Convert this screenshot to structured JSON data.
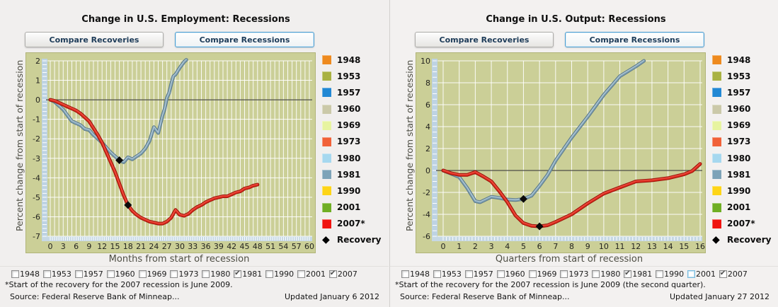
{
  "panels": [
    {
      "title": "Change in U.S. Employment: Recessions",
      "tabs": {
        "compare_recoveries": "Compare Recoveries",
        "compare_recessions": "Compare Recessions",
        "active": "compare_recessions"
      },
      "checkboxes": [
        {
          "label": "1948",
          "checked": false
        },
        {
          "label": "1953",
          "checked": false
        },
        {
          "label": "1957",
          "checked": false
        },
        {
          "label": "1960",
          "checked": false
        },
        {
          "label": "1969",
          "checked": false
        },
        {
          "label": "1973",
          "checked": false
        },
        {
          "label": "1980",
          "checked": false
        },
        {
          "label": "1981",
          "checked": true
        },
        {
          "label": "1990",
          "checked": false
        },
        {
          "label": "2001",
          "checked": false
        },
        {
          "label": "2007",
          "checked": true
        }
      ],
      "footnote": "*Start of the recovery for the 2007 recession is June 2009.",
      "source": "Source: Federal Reserve Bank of Minneap...",
      "updated": "Updated January 6 2012"
    },
    {
      "title": "Change in U.S. Output: Recessions",
      "tabs": {
        "compare_recoveries": "Compare Recoveries",
        "compare_recessions": "Compare Recessions",
        "active": "compare_recessions"
      },
      "checkboxes": [
        {
          "label": "1948",
          "checked": false
        },
        {
          "label": "1953",
          "checked": false
        },
        {
          "label": "1957",
          "checked": false
        },
        {
          "label": "1960",
          "checked": false
        },
        {
          "label": "1969",
          "checked": false
        },
        {
          "label": "1973",
          "checked": false
        },
        {
          "label": "1980",
          "checked": false
        },
        {
          "label": "1981",
          "checked": true
        },
        {
          "label": "1990",
          "checked": false
        },
        {
          "label": "2001",
          "checked": false,
          "focused": true
        },
        {
          "label": "2007",
          "checked": true
        }
      ],
      "footnote": "*Start of the recovery for the 2007 recession is June 2009 (the second quarter).",
      "source": "Source: Federal Reserve Bank of Minneap...",
      "updated": "Updated January 27 2012"
    }
  ],
  "legend": [
    {
      "label": "1948",
      "color": "#ee8a1e"
    },
    {
      "label": "1953",
      "color": "#a9b242"
    },
    {
      "label": "1957",
      "color": "#2288d4"
    },
    {
      "label": "1960",
      "color": "#cbc9a9"
    },
    {
      "label": "1969",
      "color": "#e7f4a0"
    },
    {
      "label": "1973",
      "color": "#f16138"
    },
    {
      "label": "1980",
      "color": "#a6d8ef"
    },
    {
      "label": "1981",
      "color": "#7da3b8"
    },
    {
      "label": "1990",
      "color": "#fed517"
    },
    {
      "label": "2001",
      "color": "#6fae24"
    },
    {
      "label": "2007*",
      "color": "#f01410"
    },
    {
      "label": "Recovery",
      "glyph": "◆",
      "icon": "recovery-diamond"
    }
  ],
  "chart_data": [
    {
      "type": "line",
      "title": "Change in U.S. Employment: Recessions",
      "xlabel": "Months from start of recession",
      "ylabel": "Percent change from start of recession",
      "xlim": [
        0,
        60
      ],
      "ylim": [
        -7,
        2
      ],
      "xtick_step": 3,
      "ytick_step": 1,
      "grid": {
        "x": 1,
        "y": 1
      },
      "minor": {
        "x": 0.5,
        "y": 0.2
      },
      "legend_position": "right",
      "background": "#cbcf97",
      "series": [
        {
          "name": "1981",
          "color": "#7fa1b5",
          "edge": "#5c7a8b",
          "highlight": "#c0d3dc",
          "points": [
            [
              0,
              0
            ],
            [
              1,
              -0.1
            ],
            [
              2,
              -0.3
            ],
            [
              3,
              -0.5
            ],
            [
              4,
              -0.8
            ],
            [
              5,
              -1.1
            ],
            [
              6,
              -1.2
            ],
            [
              7,
              -1.3
            ],
            [
              8,
              -1.5
            ],
            [
              9,
              -1.55
            ],
            [
              10,
              -1.8
            ],
            [
              11,
              -2.0
            ],
            [
              12,
              -2.2
            ],
            [
              13,
              -2.45
            ],
            [
              14,
              -2.7
            ],
            [
              15,
              -2.9
            ],
            [
              16,
              -3.1
            ],
            [
              17,
              -3.2
            ],
            [
              18,
              -2.95
            ],
            [
              19,
              -3.05
            ],
            [
              20,
              -2.9
            ],
            [
              21,
              -2.75
            ],
            [
              22,
              -2.5
            ],
            [
              23,
              -2.1
            ],
            [
              24,
              -1.4
            ],
            [
              25,
              -1.7
            ],
            [
              26,
              -0.8
            ],
            [
              26.5,
              -0.45
            ],
            [
              27,
              0.1
            ],
            [
              27.5,
              0.35
            ],
            [
              28,
              0.8
            ],
            [
              28.5,
              1.2
            ],
            [
              29,
              1.3
            ],
            [
              30,
              1.65
            ],
            [
              31,
              1.95
            ],
            [
              31.5,
              2.05
            ]
          ]
        },
        {
          "name": "2007*",
          "color": "#df2d20",
          "edge": "#9a1208",
          "highlight": "#ef5d4c",
          "points": [
            [
              0,
              0
            ],
            [
              1,
              -0.05
            ],
            [
              2,
              -0.15
            ],
            [
              3,
              -0.25
            ],
            [
              4,
              -0.35
            ],
            [
              5,
              -0.45
            ],
            [
              6,
              -0.55
            ],
            [
              7,
              -0.7
            ],
            [
              8,
              -0.9
            ],
            [
              9,
              -1.1
            ],
            [
              10,
              -1.45
            ],
            [
              11,
              -1.8
            ],
            [
              12,
              -2.2
            ],
            [
              13,
              -2.7
            ],
            [
              14,
              -3.2
            ],
            [
              15,
              -3.7
            ],
            [
              16,
              -4.3
            ],
            [
              17,
              -4.9
            ],
            [
              18,
              -5.4
            ],
            [
              19,
              -5.7
            ],
            [
              20,
              -5.9
            ],
            [
              21,
              -6.05
            ],
            [
              22,
              -6.15
            ],
            [
              23,
              -6.25
            ],
            [
              24,
              -6.3
            ],
            [
              25,
              -6.35
            ],
            [
              26,
              -6.35
            ],
            [
              27,
              -6.25
            ],
            [
              28,
              -6.05
            ],
            [
              29,
              -5.65
            ],
            [
              30,
              -5.9
            ],
            [
              31,
              -5.95
            ],
            [
              32,
              -5.85
            ],
            [
              33,
              -5.65
            ],
            [
              34,
              -5.5
            ],
            [
              35,
              -5.4
            ],
            [
              36,
              -5.25
            ],
            [
              37,
              -5.15
            ],
            [
              38,
              -5.05
            ],
            [
              39,
              -5.0
            ],
            [
              40,
              -4.95
            ],
            [
              41,
              -4.95
            ],
            [
              42,
              -4.85
            ],
            [
              43,
              -4.75
            ],
            [
              44,
              -4.7
            ],
            [
              45,
              -4.55
            ],
            [
              46,
              -4.5
            ],
            [
              47,
              -4.4
            ],
            [
              48,
              -4.35
            ]
          ]
        }
      ],
      "recovery_markers": [
        [
          16,
          -3.1
        ],
        [
          18,
          -5.4
        ]
      ]
    },
    {
      "type": "line",
      "title": "Change in U.S. Output: Recessions",
      "xlabel": "Quarters from start of recession",
      "ylabel": "Percent change from start of recession",
      "xlim": [
        0,
        16
      ],
      "ylim": [
        -6,
        10
      ],
      "xtick_step": 1,
      "ytick_step": 2,
      "grid": {
        "x": 1,
        "y": 2
      },
      "minor": {
        "x": 0.2,
        "y": 0.5
      },
      "legend_position": "right",
      "background": "#cbcf97",
      "series": [
        {
          "name": "1981",
          "color": "#7fa1b5",
          "edge": "#5c7a8b",
          "highlight": "#c0d3dc",
          "points": [
            [
              0,
              0
            ],
            [
              0.5,
              -0.3
            ],
            [
              1,
              -0.6
            ],
            [
              1.5,
              -1.6
            ],
            [
              2,
              -2.8
            ],
            [
              2.3,
              -2.9
            ],
            [
              3,
              -2.4
            ],
            [
              3.5,
              -2.5
            ],
            [
              4,
              -2.65
            ],
            [
              4.5,
              -2.7
            ],
            [
              5,
              -2.6
            ],
            [
              5.5,
              -2.3
            ],
            [
              6,
              -1.4
            ],
            [
              6.5,
              -0.4
            ],
            [
              7,
              0.9
            ],
            [
              8,
              3.0
            ],
            [
              9,
              4.9
            ],
            [
              10,
              6.9
            ],
            [
              11,
              8.6
            ],
            [
              12,
              9.5
            ],
            [
              12.5,
              10.0
            ]
          ]
        },
        {
          "name": "2007*",
          "color": "#df2d20",
          "edge": "#9a1208",
          "highlight": "#ef5d4c",
          "points": [
            [
              0,
              0
            ],
            [
              0.5,
              -0.25
            ],
            [
              1,
              -0.4
            ],
            [
              1.5,
              -0.4
            ],
            [
              2,
              -0.15
            ],
            [
              2.5,
              -0.55
            ],
            [
              3,
              -1.0
            ],
            [
              3.5,
              -1.9
            ],
            [
              4,
              -2.9
            ],
            [
              4.5,
              -4.1
            ],
            [
              5,
              -4.8
            ],
            [
              5.5,
              -5.05
            ],
            [
              6,
              -5.1
            ],
            [
              6.5,
              -5.0
            ],
            [
              7,
              -4.7
            ],
            [
              8,
              -4.0
            ],
            [
              9,
              -3.0
            ],
            [
              10,
              -2.1
            ],
            [
              11,
              -1.55
            ],
            [
              12,
              -1.0
            ],
            [
              13,
              -0.9
            ],
            [
              14,
              -0.7
            ],
            [
              15,
              -0.35
            ],
            [
              15.5,
              -0.05
            ],
            [
              16,
              0.6
            ]
          ]
        }
      ],
      "recovery_markers": [
        [
          5,
          -2.6
        ],
        [
          6,
          -5.1
        ]
      ]
    }
  ]
}
